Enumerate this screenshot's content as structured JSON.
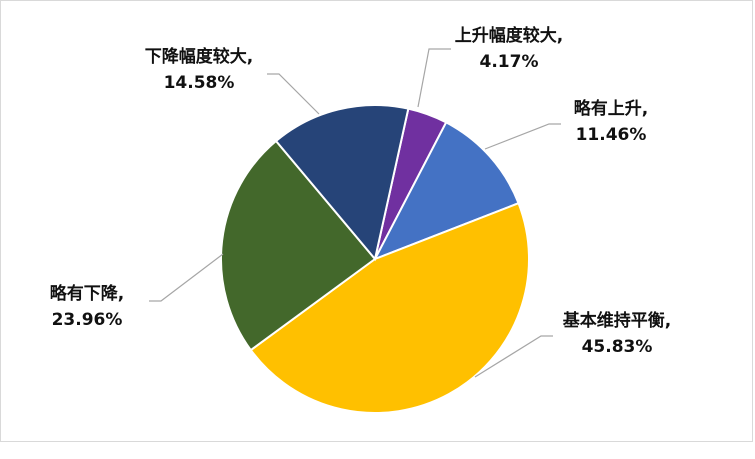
{
  "chart_data": {
    "type": "pie",
    "title": "",
    "legend": "none",
    "slices": [
      {
        "name": "上升幅度较大",
        "value": 4.17,
        "label": "4.17%",
        "color": "#7030A0"
      },
      {
        "name": "略有上升",
        "value": 11.46,
        "label": "11.46%",
        "color": "#4472C4"
      },
      {
        "name": "基本维持平衡",
        "value": 45.83,
        "label": "45.83%",
        "color": "#FFC000"
      },
      {
        "name": "略有下降",
        "value": 23.96,
        "label": "23.96%",
        "color": "#43682B"
      },
      {
        "name": "下降幅度较大",
        "value": 14.58,
        "label": "14.58%",
        "color": "#264478"
      }
    ]
  }
}
